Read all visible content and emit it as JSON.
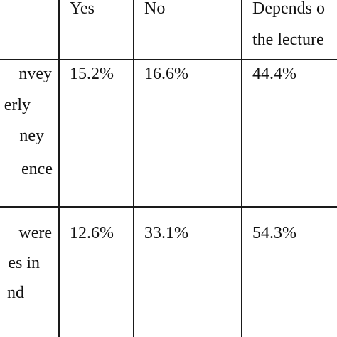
{
  "table": {
    "headers": {
      "yes": "Yes",
      "no": "No",
      "depends_line1": "Depends o",
      "depends_line2": "the lecture"
    },
    "rows": [
      {
        "label_lines": [
          "nvey",
          "erly",
          "ney",
          "ence"
        ],
        "yes": "15.2%",
        "no": "16.6%",
        "depends": "44.4%"
      },
      {
        "label_lines": [
          "were",
          "es in",
          "nd"
        ],
        "yes": "12.6%",
        "no": "33.1%",
        "depends": "54.3%"
      }
    ]
  }
}
